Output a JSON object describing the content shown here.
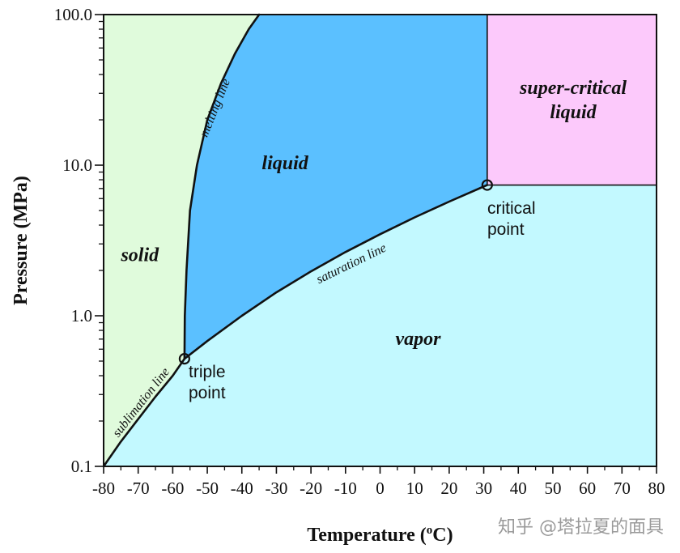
{
  "chart_data": {
    "type": "phase-diagram",
    "xlabel": "Temperature (°C)",
    "xlabel_parts": {
      "main": "Temperature (",
      "sup": "o",
      "rest": "C)"
    },
    "ylabel": "Pressure (MPa)",
    "xlim": [
      -80,
      80
    ],
    "ylim": [
      0.1,
      100.0
    ],
    "y_scale": "log",
    "x_ticks": [
      -80,
      -70,
      -60,
      -50,
      -40,
      -30,
      -20,
      -10,
      0,
      10,
      20,
      30,
      40,
      50,
      60,
      70,
      80
    ],
    "x_tick_labels": [
      "-80",
      "-70",
      "-60",
      "-50",
      "-40",
      "-30",
      "-20",
      "-10",
      "0",
      "10",
      "20",
      "30",
      "40",
      "50",
      "60",
      "70",
      "80"
    ],
    "y_ticks": [
      0.1,
      1.0,
      10.0,
      100.0
    ],
    "y_tick_labels": [
      "0.1",
      "1.0",
      "10.0",
      "100.0"
    ],
    "grid": false,
    "points": {
      "triple": {
        "x": -56.6,
        "y": 0.518,
        "label": [
          "triple",
          "point"
        ]
      },
      "critical": {
        "x": 31.0,
        "y": 7.38,
        "label": [
          "critical",
          "point"
        ]
      }
    },
    "curves": {
      "sublimation": {
        "label": "sublimation line",
        "x": [
          -80,
          -75,
          -70,
          -65,
          -60,
          -56.6
        ],
        "y": [
          0.1,
          0.146,
          0.206,
          0.29,
          0.4,
          0.518
        ]
      },
      "saturation": {
        "label": "saturation line",
        "x": [
          -56.6,
          -50,
          -40,
          -30,
          -20,
          -10,
          0,
          10,
          20,
          31.0
        ],
        "y": [
          0.518,
          0.68,
          1.0,
          1.43,
          1.97,
          2.65,
          3.48,
          4.5,
          5.73,
          7.38
        ]
      },
      "melting": {
        "label": "melting line",
        "x": [
          -56.6,
          -56.5,
          -56.0,
          -55.0,
          -53.0,
          -50.0,
          -46.0,
          -42.0,
          -38.0,
          -35.0
        ],
        "y": [
          0.518,
          1.0,
          2.0,
          5.0,
          10.0,
          20.0,
          35.0,
          55.0,
          80.0,
          100.0
        ]
      }
    },
    "regions": [
      {
        "name": "solid",
        "label": "solid",
        "color": "#e0fbdc"
      },
      {
        "name": "liquid",
        "label": "liquid",
        "color": "#5bc0ff"
      },
      {
        "name": "vapor",
        "label": "vapor",
        "color": "#c3f9ff"
      },
      {
        "name": "supercritical",
        "label": [
          "super-critical",
          "liquid"
        ],
        "color": "#fcc9fb"
      }
    ]
  },
  "watermark": "知乎 @塔拉夏的面具"
}
